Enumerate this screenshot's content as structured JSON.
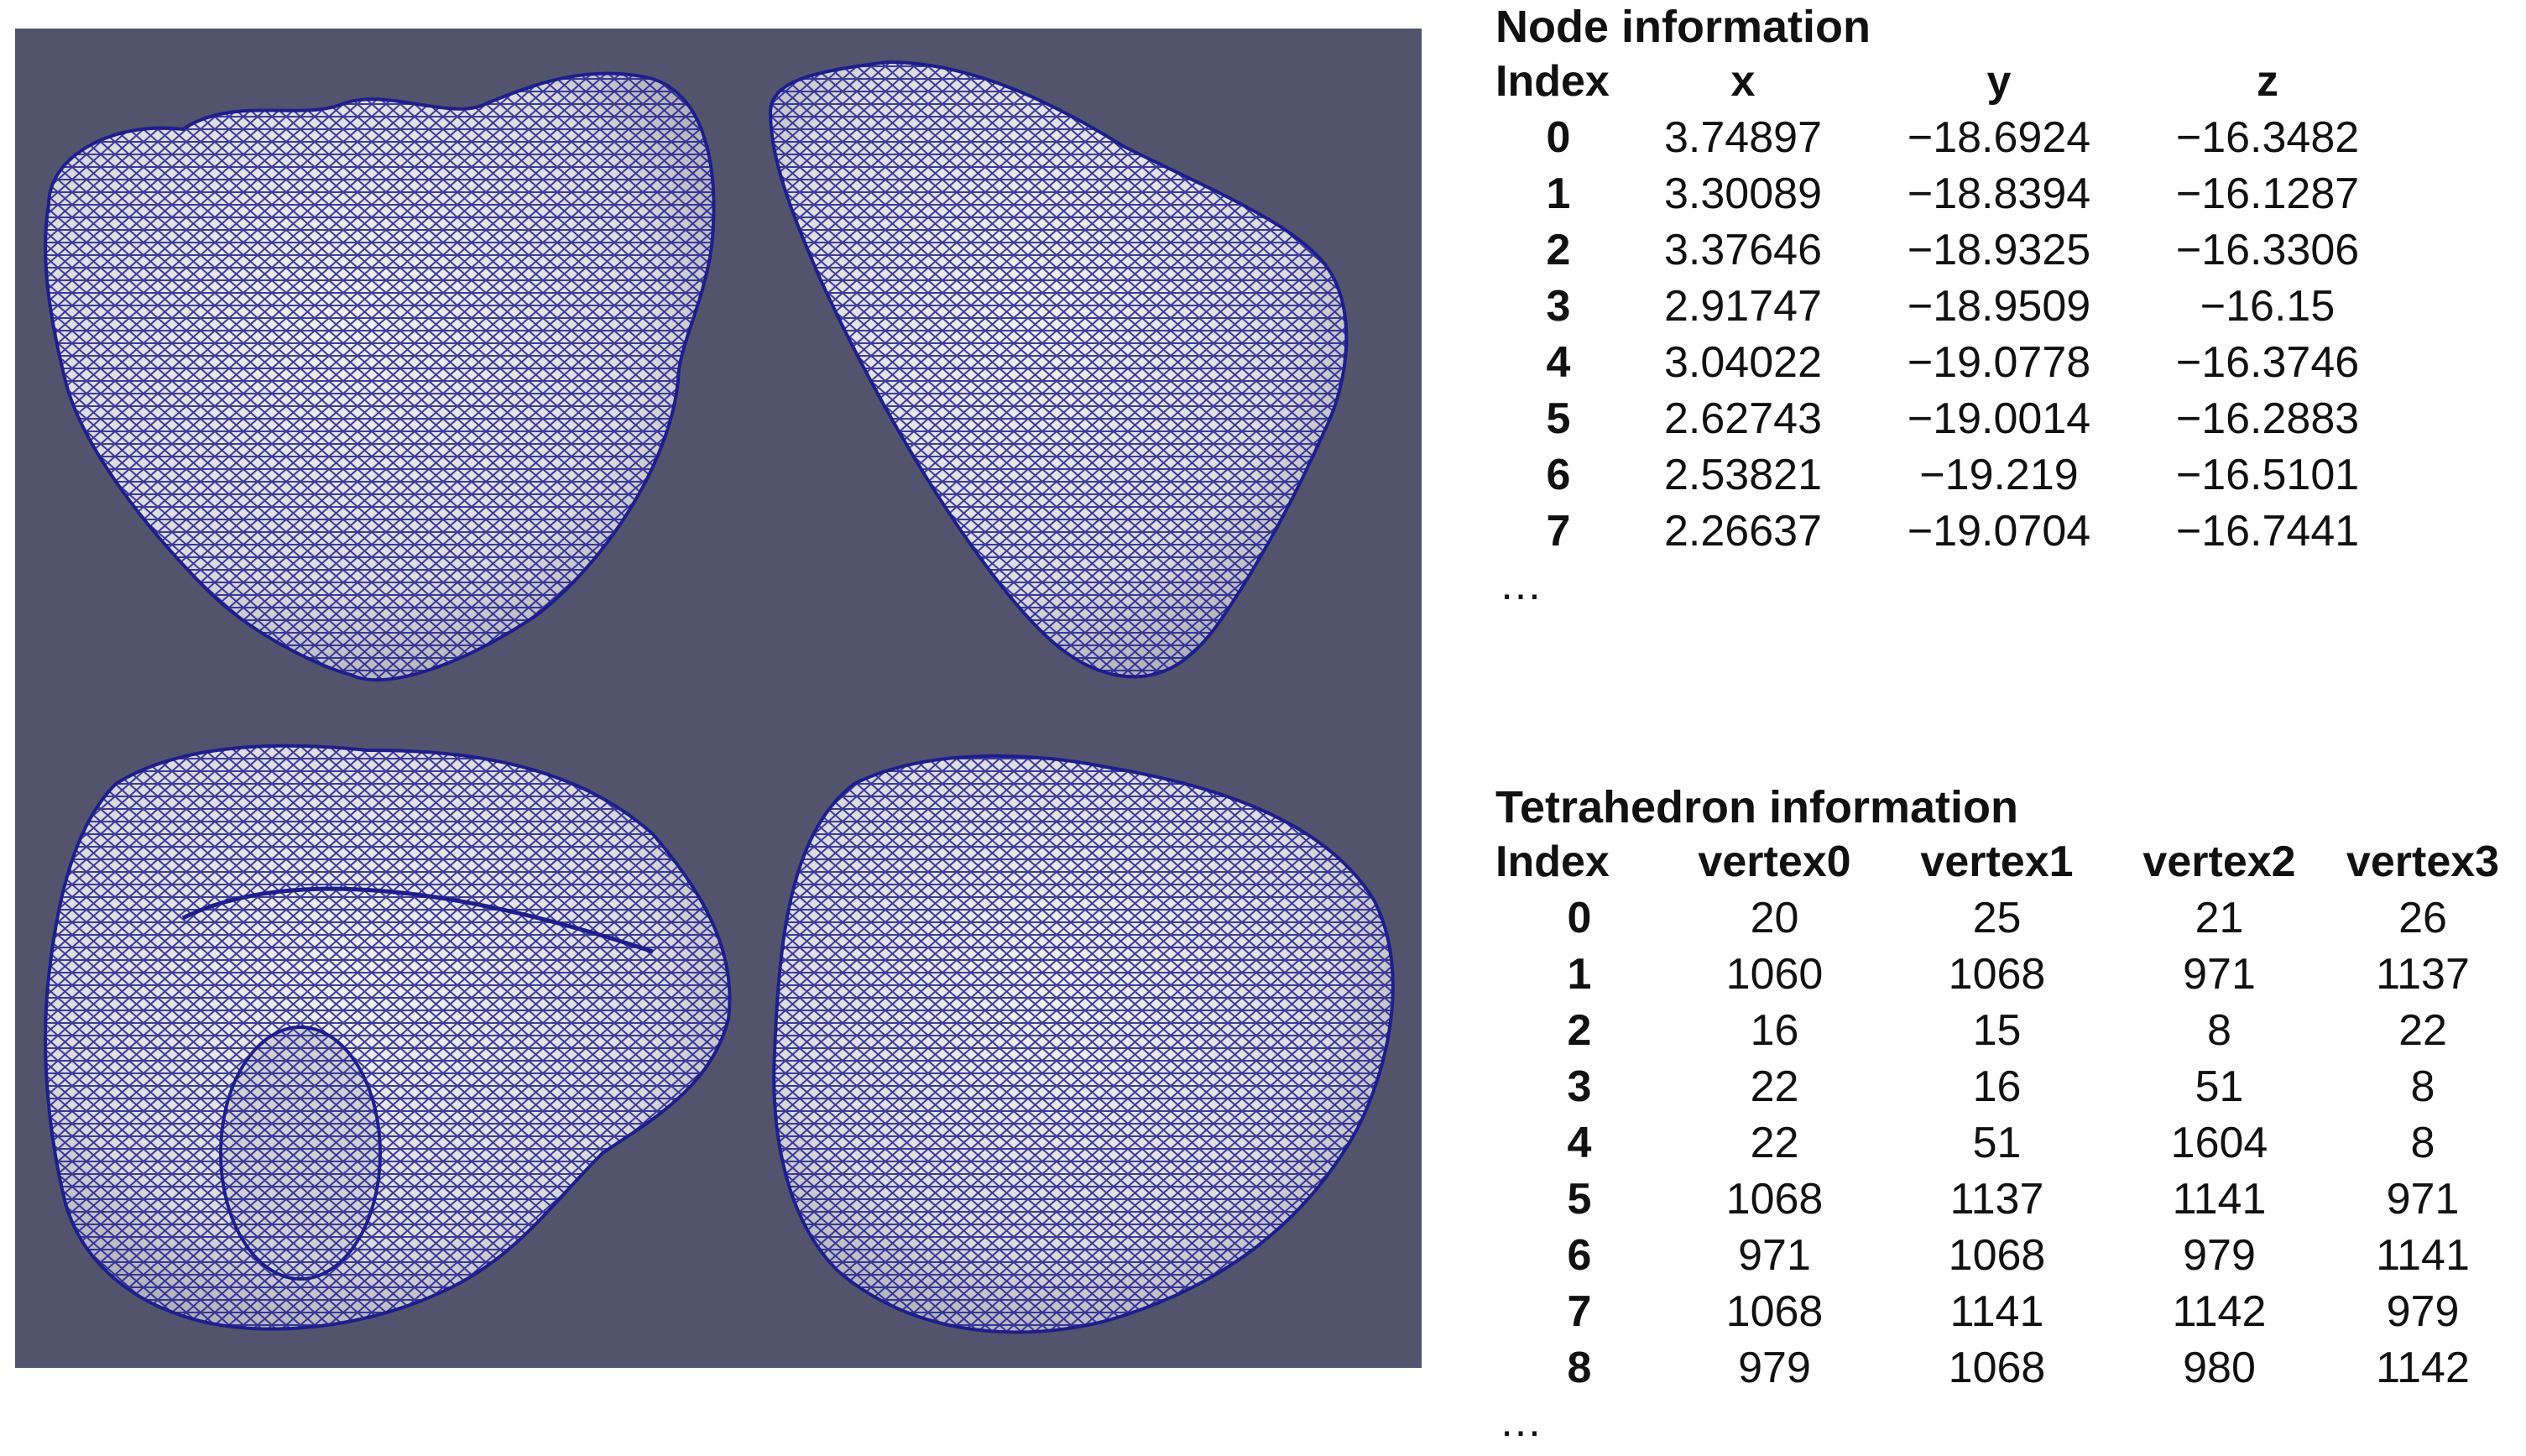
{
  "node_section": {
    "title": "Node information",
    "headers": [
      "Index",
      "x",
      "y",
      "z"
    ],
    "rows": [
      [
        "0",
        "3.74897",
        "−18.6924",
        "−16.3482"
      ],
      [
        "1",
        "3.30089",
        "−18.8394",
        "−16.1287"
      ],
      [
        "2",
        "3.37646",
        "−18.9325",
        "−16.3306"
      ],
      [
        "3",
        "2.91747",
        "−18.9509",
        "−16.15"
      ],
      [
        "4",
        "3.04022",
        "−19.0778",
        "−16.3746"
      ],
      [
        "5",
        "2.62743",
        "−19.0014",
        "−16.2883"
      ],
      [
        "6",
        "2.53821",
        "−19.219",
        "−16.5101"
      ],
      [
        "7",
        "2.26637",
        "−19.0704",
        "−16.7441"
      ]
    ],
    "ellipsis": "…"
  },
  "tetra_section": {
    "title": "Tetrahedron information",
    "headers": [
      "Index",
      "vertex0",
      "vertex1",
      "vertex2",
      "vertex3"
    ],
    "rows": [
      [
        "0",
        "20",
        "25",
        "21",
        "26"
      ],
      [
        "1",
        "1060",
        "1068",
        "971",
        "1137"
      ],
      [
        "2",
        "16",
        "15",
        "8",
        "22"
      ],
      [
        "3",
        "22",
        "16",
        "51",
        "8"
      ],
      [
        "4",
        "22",
        "51",
        "1604",
        "8"
      ],
      [
        "5",
        "1068",
        "1137",
        "1141",
        "971"
      ],
      [
        "6",
        "971",
        "1068",
        "979",
        "1141"
      ],
      [
        "7",
        "1068",
        "1141",
        "1142",
        "979"
      ],
      [
        "8",
        "979",
        "1068",
        "980",
        "1142"
      ]
    ],
    "ellipsis": "…"
  },
  "viewport": {
    "background_color": "#51546c",
    "mesh_color": "#1e1e8c",
    "surface_color": "#e9e8ea",
    "views": [
      "heart-front-view",
      "heart-side-view",
      "heart-base-view",
      "heart-apex-view"
    ]
  }
}
